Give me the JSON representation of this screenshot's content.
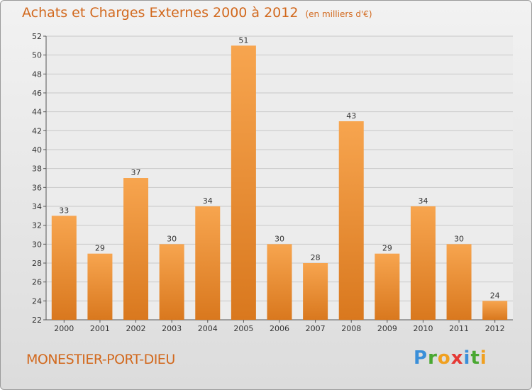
{
  "title": "Achats et Charges Externes 2000 à 2012",
  "unit": "(en milliers d'€)",
  "commune": "MONESTIER-PORT-DIEU",
  "logo": {
    "text": "Proxiti",
    "letters": [
      "P",
      "r",
      "o",
      "x",
      "i",
      "t",
      "i"
    ],
    "colors": [
      "#3a8fd9",
      "#4aa832",
      "#f0a020",
      "#e53935",
      "#3a8fd9",
      "#4aa832",
      "#f0a020"
    ]
  },
  "colors": {
    "bar_light": "#f7a54f",
    "bar_dark": "#d9781e",
    "title": "#d2691e"
  },
  "chart_data": {
    "type": "bar",
    "title": "Achats et Charges Externes 2000 à 2012",
    "categories": [
      "2000",
      "2001",
      "2002",
      "2003",
      "2004",
      "2005",
      "2006",
      "2007",
      "2008",
      "2009",
      "2010",
      "2011",
      "2012"
    ],
    "values": [
      33,
      29,
      37,
      30,
      34,
      51,
      30,
      28,
      43,
      29,
      34,
      30,
      24
    ],
    "ylim": [
      22,
      52
    ],
    "yticks": [
      22,
      24,
      26,
      28,
      30,
      32,
      34,
      36,
      38,
      40,
      42,
      44,
      46,
      48,
      50,
      52
    ],
    "grid": true,
    "data_labels": true
  }
}
